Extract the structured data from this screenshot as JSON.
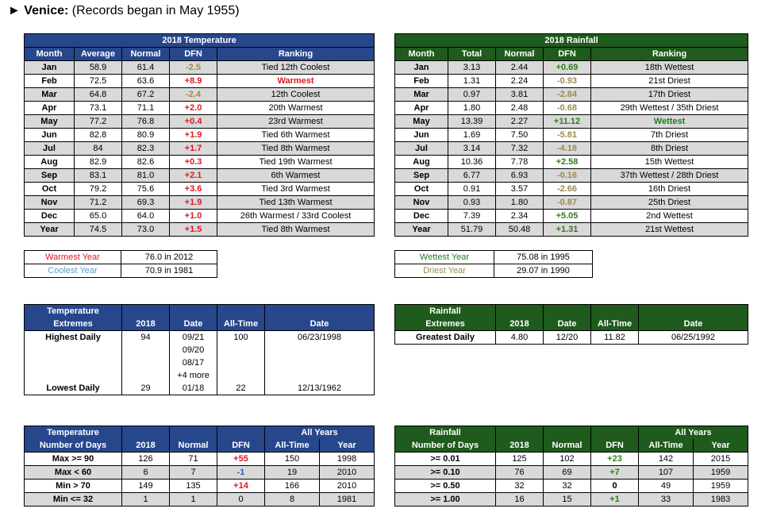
{
  "page": {
    "marker": "►",
    "title_bold": "Venice:",
    "title_rest": " (Records began in May 1955)"
  },
  "temperature": {
    "title": "2018 Temperature",
    "headers": [
      "Month",
      "Average",
      "Normal",
      "DFN",
      "Ranking"
    ],
    "rows": [
      {
        "month": "Jan",
        "avg": "58.9",
        "normal": "61.4",
        "dfn": "-2.5",
        "rank": "Tied 12th Coolest",
        "dfn_style": "neg",
        "rank_style": ""
      },
      {
        "month": "Feb",
        "avg": "72.5",
        "normal": "63.6",
        "dfn": "+8.9",
        "rank": "Warmest",
        "dfn_style": "red",
        "rank_style": "red"
      },
      {
        "month": "Mar",
        "avg": "64.8",
        "normal": "67.2",
        "dfn": "-2.4",
        "rank": "12th Coolest",
        "dfn_style": "neg",
        "rank_style": ""
      },
      {
        "month": "Apr",
        "avg": "73.1",
        "normal": "71.1",
        "dfn": "+2.0",
        "rank": "20th Warmest",
        "dfn_style": "red",
        "rank_style": ""
      },
      {
        "month": "May",
        "avg": "77.2",
        "normal": "76.8",
        "dfn": "+0.4",
        "rank": "23rd Warmest",
        "dfn_style": "red",
        "rank_style": ""
      },
      {
        "month": "Jun",
        "avg": "82.8",
        "normal": "80.9",
        "dfn": "+1.9",
        "rank": "Tied 6th Warmest",
        "dfn_style": "red",
        "rank_style": ""
      },
      {
        "month": "Jul",
        "avg": "84",
        "normal": "82.3",
        "dfn": "+1.7",
        "rank": "Tied 8th Warmest",
        "dfn_style": "red",
        "rank_style": ""
      },
      {
        "month": "Aug",
        "avg": "82.9",
        "normal": "82.6",
        "dfn": "+0.3",
        "rank": "Tied 19th Warmest",
        "dfn_style": "red",
        "rank_style": ""
      },
      {
        "month": "Sep",
        "avg": "83.1",
        "normal": "81.0",
        "dfn": "+2.1",
        "rank": "6th Warmest",
        "dfn_style": "red",
        "rank_style": ""
      },
      {
        "month": "Oct",
        "avg": "79.2",
        "normal": "75.6",
        "dfn": "+3.6",
        "rank": "Tied 3rd Warmest",
        "dfn_style": "red",
        "rank_style": ""
      },
      {
        "month": "Nov",
        "avg": "71.2",
        "normal": "69.3",
        "dfn": "+1.9",
        "rank": "Tied 13th Warmest",
        "dfn_style": "red",
        "rank_style": ""
      },
      {
        "month": "Dec",
        "avg": "65.0",
        "normal": "64.0",
        "dfn": "+1.0",
        "rank": "26th Warmest / 33rd Coolest",
        "dfn_style": "red",
        "rank_style": ""
      },
      {
        "month": "Year",
        "avg": "74.5",
        "normal": "73.0",
        "dfn": "+1.5",
        "rank": "Tied 8th Warmest",
        "dfn_style": "red",
        "rank_style": ""
      }
    ]
  },
  "rainfall": {
    "title": "2018 Rainfall",
    "headers": [
      "Month",
      "Total",
      "Normal",
      "DFN",
      "Ranking"
    ],
    "rows": [
      {
        "month": "Jan",
        "total": "3.13",
        "normal": "2.44",
        "dfn": "+0.69",
        "rank": "18th Wettest",
        "dfn_style": "pos",
        "rank_style": ""
      },
      {
        "month": "Feb",
        "total": "1.31",
        "normal": "2.24",
        "dfn": "-0.93",
        "rank": "21st Driest",
        "dfn_style": "neg",
        "rank_style": ""
      },
      {
        "month": "Mar",
        "total": "0.97",
        "normal": "3.81",
        "dfn": "-2.84",
        "rank": "17th Driest",
        "dfn_style": "neg",
        "rank_style": ""
      },
      {
        "month": "Apr",
        "total": "1.80",
        "normal": "2.48",
        "dfn": "-0.68",
        "rank": "29th Wettest / 35th Driest",
        "dfn_style": "neg",
        "rank_style": ""
      },
      {
        "month": "May",
        "total": "13.39",
        "normal": "2.27",
        "dfn": "+11.12",
        "rank": "Wettest",
        "dfn_style": "pos",
        "rank_style": "wet"
      },
      {
        "month": "Jun",
        "total": "1.69",
        "normal": "7.50",
        "dfn": "-5.81",
        "rank": "7th Driest",
        "dfn_style": "neg",
        "rank_style": ""
      },
      {
        "month": "Jul",
        "total": "3.14",
        "normal": "7.32",
        "dfn": "-4.18",
        "rank": "8th Driest",
        "dfn_style": "neg",
        "rank_style": ""
      },
      {
        "month": "Aug",
        "total": "10.36",
        "normal": "7.78",
        "dfn": "+2.58",
        "rank": "15th Wettest",
        "dfn_style": "pos",
        "rank_style": ""
      },
      {
        "month": "Sep",
        "total": "6.77",
        "normal": "6.93",
        "dfn": "-0.16",
        "rank": "37th Wettest / 28th Driest",
        "dfn_style": "neg",
        "rank_style": ""
      },
      {
        "month": "Oct",
        "total": "0.91",
        "normal": "3.57",
        "dfn": "-2.66",
        "rank": "16th Driest",
        "dfn_style": "neg",
        "rank_style": ""
      },
      {
        "month": "Nov",
        "total": "0.93",
        "normal": "1.80",
        "dfn": "-0.87",
        "rank": "25th Driest",
        "dfn_style": "neg",
        "rank_style": ""
      },
      {
        "month": "Dec",
        "total": "7.39",
        "normal": "2.34",
        "dfn": "+5.05",
        "rank": "2nd Wettest",
        "dfn_style": "pos",
        "rank_style": ""
      },
      {
        "month": "Year",
        "total": "51.79",
        "normal": "50.48",
        "dfn": "+1.31",
        "rank": "21st Wettest",
        "dfn_style": "pos",
        "rank_style": ""
      }
    ]
  },
  "temp_years": {
    "warmest_label": "Warmest Year",
    "warmest_value": "76.0 in 2012",
    "coolest_label": "Coolest Year",
    "coolest_value": "70.9 in 1981"
  },
  "rain_years": {
    "wettest_label": "Wettest Year",
    "wettest_value": "75.08 in 1995",
    "driest_label": "Driest Year",
    "driest_value": "29.07 in 1990"
  },
  "temp_extremes": {
    "header1": "Temperature",
    "header2": "Extremes",
    "col_2018": "2018",
    "col_date": "Date",
    "col_alltime": "All-Time",
    "col_date2": "Date",
    "highest_label": "Highest Daily",
    "highest_2018": "94",
    "highest_dates": [
      "09/21",
      "09/20",
      "08/17",
      "+4 more"
    ],
    "highest_alltime": "100",
    "highest_alltime_date": "06/23/1998",
    "lowest_label": "Lowest Daily",
    "lowest_2018": "29",
    "lowest_date": "01/18",
    "lowest_alltime": "22",
    "lowest_alltime_date": "12/13/1962"
  },
  "rain_extremes": {
    "header1": "Rainfall",
    "header2": "Extremes",
    "col_2018": "2018",
    "col_date": "Date",
    "col_alltime": "All-Time",
    "col_date2": "Date",
    "greatest_label": "Greatest Daily",
    "greatest_2018": "4.80",
    "greatest_date": "12/20",
    "greatest_alltime": "11.82",
    "greatest_alltime_date": "06/25/1992"
  },
  "temp_days": {
    "header1": "Temperature",
    "header2": "Number of Days",
    "all_years": "All Years",
    "cols": [
      "2018",
      "Normal",
      "DFN",
      "All-Time",
      "Year"
    ],
    "rows": [
      {
        "label": "Max >= 90",
        "y2018": "126",
        "normal": "71",
        "dfn": "+55",
        "alltime": "150",
        "year": "1998",
        "dfn_style": "red"
      },
      {
        "label": "Max < 60",
        "y2018": "6",
        "normal": "7",
        "dfn": "-1",
        "alltime": "19",
        "year": "2010",
        "dfn_style": "blue"
      },
      {
        "label": "Min > 70",
        "y2018": "149",
        "normal": "135",
        "dfn": "+14",
        "alltime": "166",
        "year": "2010",
        "dfn_style": "red"
      },
      {
        "label": "Min <= 32",
        "y2018": "1",
        "normal": "1",
        "dfn": "0",
        "alltime": "8",
        "year": "1981",
        "dfn_style": ""
      }
    ]
  },
  "rain_days": {
    "header1": "Rainfall",
    "header2": "Number of Days",
    "all_years": "All Years",
    "cols": [
      "2018",
      "Normal",
      "DFN",
      "All-Time",
      "Year"
    ],
    "rows": [
      {
        "label": ">= 0.01",
        "y2018": "125",
        "normal": "102",
        "dfn": "+23",
        "alltime": "142",
        "year": "2015",
        "dfn_style": "pos"
      },
      {
        "label": ">= 0.10",
        "y2018": "76",
        "normal": "69",
        "dfn": "+7",
        "alltime": "107",
        "year": "1959",
        "dfn_style": "pos"
      },
      {
        "label": ">= 0.50",
        "y2018": "32",
        "normal": "32",
        "dfn": "0",
        "alltime": "49",
        "year": "1959",
        "dfn_style": "plain"
      },
      {
        "label": ">= 1.00",
        "y2018": "16",
        "normal": "15",
        "dfn": "+1",
        "alltime": "33",
        "year": "1983",
        "dfn_style": "pos"
      }
    ]
  },
  "colors": {
    "blue_header": "#27478c",
    "green_header": "#1e5b1c",
    "shade": "#d9d9d9",
    "red": "#e0181f",
    "green_pos": "#2e7d1a",
    "tan_neg": "#9c8a4f",
    "light_blue": "#5a9bd5"
  }
}
